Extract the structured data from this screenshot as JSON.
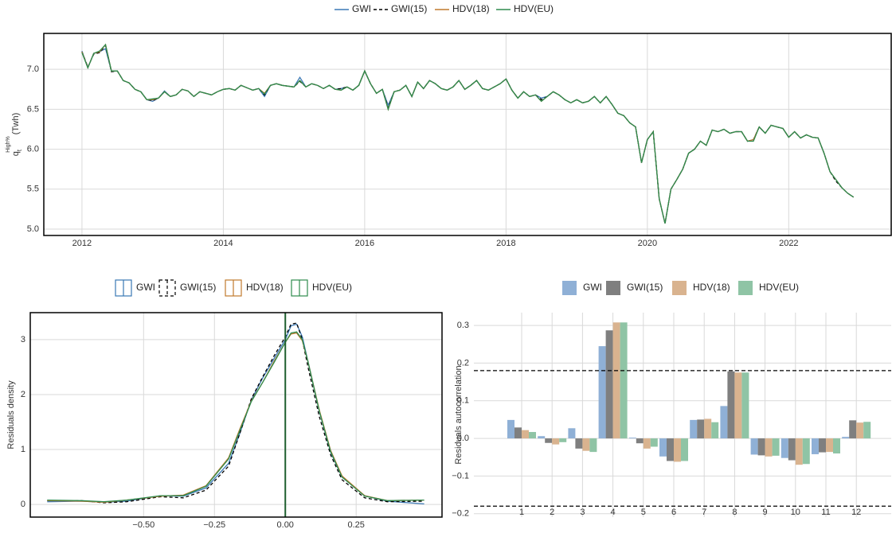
{
  "chart_data": [
    {
      "type": "line",
      "ylabel": "q",
      "ylabel_sub": "t",
      "ylabel_sup": "High%",
      "ylabel_unit": "(Twh)",
      "xlim": [
        2011.46,
        2023.45
      ],
      "xticks": [
        2012,
        2014,
        2016,
        2018,
        2020,
        2022
      ],
      "ylim": [
        4.92,
        7.45
      ],
      "yticks": [
        {
          "value": 5.0,
          "label": "5.0"
        },
        {
          "value": 5.5,
          "label": "5.5"
        },
        {
          "value": 6.0,
          "label": "6.0"
        },
        {
          "value": 6.5,
          "label": "6.5"
        },
        {
          "value": 7.0,
          "label": "7.0"
        }
      ],
      "grid": true,
      "legend": "top",
      "x": [
        2012,
        2012.083,
        2012.167,
        2012.25,
        2012.333,
        2012.417,
        2012.5,
        2012.583,
        2012.667,
        2012.75,
        2012.833,
        2012.917,
        2013,
        2013.083,
        2013.167,
        2013.25,
        2013.333,
        2013.417,
        2013.5,
        2013.583,
        2013.667,
        2013.75,
        2013.833,
        2013.917,
        2014,
        2014.083,
        2014.167,
        2014.25,
        2014.333,
        2014.417,
        2014.5,
        2014.583,
        2014.667,
        2014.75,
        2014.833,
        2014.917,
        2015,
        2015.083,
        2015.167,
        2015.25,
        2015.333,
        2015.417,
        2015.5,
        2015.583,
        2015.667,
        2015.75,
        2015.833,
        2015.917,
        2016,
        2016.083,
        2016.167,
        2016.25,
        2016.333,
        2016.417,
        2016.5,
        2016.583,
        2016.667,
        2016.75,
        2016.833,
        2016.917,
        2017,
        2017.083,
        2017.167,
        2017.25,
        2017.333,
        2017.417,
        2017.5,
        2017.583,
        2017.667,
        2017.75,
        2017.833,
        2017.917,
        2018,
        2018.083,
        2018.167,
        2018.25,
        2018.333,
        2018.417,
        2018.5,
        2018.583,
        2018.667,
        2018.75,
        2018.833,
        2018.917,
        2019,
        2019.083,
        2019.167,
        2019.25,
        2019.333,
        2019.417,
        2019.5,
        2019.583,
        2019.667,
        2019.75,
        2019.833,
        2019.917,
        2020,
        2020.083,
        2020.167,
        2020.25,
        2020.333,
        2020.417,
        2020.5,
        2020.583,
        2020.667,
        2020.75,
        2020.833,
        2020.917,
        2021,
        2021.083,
        2021.167,
        2021.25,
        2021.333,
        2021.417,
        2021.5,
        2021.583,
        2021.667,
        2021.75,
        2021.833,
        2021.917,
        2022,
        2022.083,
        2022.167,
        2022.25,
        2022.333,
        2022.417,
        2022.5,
        2022.583,
        2022.667,
        2022.75,
        2022.833,
        2022.917
      ],
      "series": [
        {
          "name": "GWI",
          "color": "#3a78b5",
          "dash": false,
          "values": [
            7.23,
            7.02,
            7.2,
            7.22,
            7.26,
            6.98,
            6.98,
            6.86,
            6.83,
            6.75,
            6.72,
            6.62,
            6.6,
            6.64,
            6.73,
            6.66,
            6.68,
            6.75,
            6.73,
            6.66,
            6.72,
            6.7,
            6.68,
            6.72,
            6.75,
            6.76,
            6.74,
            6.8,
            6.77,
            6.74,
            6.76,
            6.66,
            6.8,
            6.82,
            6.8,
            6.79,
            6.78,
            6.9,
            6.78,
            6.82,
            6.8,
            6.76,
            6.8,
            6.75,
            6.76,
            6.78,
            6.74,
            6.8,
            6.98,
            6.82,
            6.7,
            6.75,
            6.55,
            6.72,
            6.74,
            6.8,
            6.66,
            6.84,
            6.76,
            6.86,
            6.82,
            6.76,
            6.74,
            6.78,
            6.86,
            6.75,
            6.8,
            6.86,
            6.76,
            6.74,
            6.78,
            6.82,
            6.88,
            6.74,
            6.64,
            6.72,
            6.66,
            6.68,
            6.64,
            6.66,
            6.72,
            6.68,
            6.62,
            6.58,
            6.62,
            6.58,
            6.6,
            6.66,
            6.58,
            6.66,
            6.56,
            6.45,
            6.42,
            6.33,
            6.28,
            5.83,
            6.12,
            6.22,
            5.38,
            5.07,
            5.5,
            5.62,
            5.75,
            5.95,
            6,
            6.1,
            6.05,
            6.24,
            6.22,
            6.25,
            6.2,
            6.22,
            6.22,
            6.1,
            6.12,
            6.28,
            6.2,
            6.3,
            6.28,
            6.26,
            6.15,
            6.22,
            6.14,
            6.18,
            6.15,
            6.14,
            5.95,
            5.72,
            5.62,
            5.52,
            5.45,
            5.4
          ]
        },
        {
          "name": "GWI(15)",
          "color": "#000000",
          "dash": true,
          "values": [
            7.22,
            7.03,
            7.19,
            7.21,
            7.3,
            6.97,
            6.98,
            6.86,
            6.83,
            6.75,
            6.72,
            6.62,
            6.61,
            6.64,
            6.72,
            6.66,
            6.68,
            6.75,
            6.73,
            6.66,
            6.72,
            6.7,
            6.68,
            6.72,
            6.75,
            6.76,
            6.74,
            6.8,
            6.77,
            6.74,
            6.76,
            6.68,
            6.8,
            6.82,
            6.8,
            6.79,
            6.78,
            6.85,
            6.78,
            6.82,
            6.8,
            6.76,
            6.8,
            6.75,
            6.76,
            6.78,
            6.74,
            6.8,
            6.98,
            6.82,
            6.7,
            6.75,
            6.52,
            6.72,
            6.74,
            6.8,
            6.66,
            6.84,
            6.76,
            6.86,
            6.82,
            6.76,
            6.74,
            6.78,
            6.86,
            6.75,
            6.8,
            6.86,
            6.76,
            6.74,
            6.78,
            6.82,
            6.88,
            6.74,
            6.64,
            6.72,
            6.66,
            6.68,
            6.62,
            6.66,
            6.72,
            6.68,
            6.62,
            6.58,
            6.62,
            6.58,
            6.6,
            6.66,
            6.58,
            6.66,
            6.56,
            6.45,
            6.42,
            6.33,
            6.28,
            5.83,
            6.12,
            6.22,
            5.38,
            5.07,
            5.5,
            5.62,
            5.75,
            5.95,
            6,
            6.1,
            6.05,
            6.24,
            6.22,
            6.25,
            6.2,
            6.22,
            6.22,
            6.1,
            6.12,
            6.28,
            6.2,
            6.3,
            6.28,
            6.26,
            6.15,
            6.22,
            6.14,
            6.18,
            6.15,
            6.14,
            5.95,
            5.72,
            5.6,
            5.52,
            5.45,
            5.4
          ]
        },
        {
          "name": "HDV(18)",
          "color": "#c07a2d",
          "dash": false,
          "values": [
            7.22,
            7.02,
            7.2,
            7.22,
            7.31,
            6.98,
            6.98,
            6.86,
            6.83,
            6.75,
            6.72,
            6.62,
            6.62,
            6.64,
            6.72,
            6.66,
            6.68,
            6.75,
            6.73,
            6.66,
            6.72,
            6.7,
            6.68,
            6.72,
            6.75,
            6.76,
            6.74,
            6.8,
            6.77,
            6.74,
            6.76,
            6.7,
            6.8,
            6.82,
            6.8,
            6.79,
            6.78,
            6.86,
            6.78,
            6.82,
            6.8,
            6.76,
            6.8,
            6.75,
            6.74,
            6.78,
            6.74,
            6.8,
            6.98,
            6.82,
            6.7,
            6.75,
            6.5,
            6.72,
            6.74,
            6.8,
            6.66,
            6.84,
            6.76,
            6.86,
            6.82,
            6.76,
            6.74,
            6.78,
            6.86,
            6.75,
            6.8,
            6.86,
            6.76,
            6.74,
            6.78,
            6.82,
            6.88,
            6.74,
            6.64,
            6.72,
            6.66,
            6.68,
            6.6,
            6.66,
            6.72,
            6.68,
            6.62,
            6.58,
            6.62,
            6.58,
            6.6,
            6.66,
            6.58,
            6.66,
            6.56,
            6.45,
            6.42,
            6.33,
            6.28,
            5.83,
            6.12,
            6.22,
            5.38,
            5.07,
            5.5,
            5.62,
            5.75,
            5.95,
            6,
            6.1,
            6.05,
            6.24,
            6.22,
            6.25,
            6.2,
            6.22,
            6.22,
            6.1,
            6.12,
            6.28,
            6.2,
            6.3,
            6.28,
            6.26,
            6.15,
            6.22,
            6.14,
            6.18,
            6.15,
            6.14,
            5.95,
            5.72,
            5.62,
            5.52,
            5.45,
            5.4
          ]
        },
        {
          "name": "HDV(EU)",
          "color": "#2e8b4e",
          "dash": false,
          "values": [
            7.21,
            7.02,
            7.2,
            7.23,
            7.31,
            6.98,
            6.98,
            6.86,
            6.83,
            6.75,
            6.72,
            6.62,
            6.63,
            6.64,
            6.72,
            6.66,
            6.68,
            6.75,
            6.73,
            6.66,
            6.72,
            6.7,
            6.68,
            6.72,
            6.75,
            6.76,
            6.74,
            6.8,
            6.77,
            6.74,
            6.76,
            6.69,
            6.8,
            6.82,
            6.8,
            6.79,
            6.78,
            6.86,
            6.78,
            6.82,
            6.8,
            6.76,
            6.8,
            6.75,
            6.74,
            6.78,
            6.74,
            6.8,
            6.98,
            6.82,
            6.7,
            6.75,
            6.5,
            6.72,
            6.74,
            6.8,
            6.66,
            6.84,
            6.76,
            6.86,
            6.82,
            6.76,
            6.74,
            6.78,
            6.86,
            6.75,
            6.8,
            6.86,
            6.76,
            6.74,
            6.78,
            6.82,
            6.88,
            6.74,
            6.64,
            6.72,
            6.66,
            6.68,
            6.6,
            6.66,
            6.72,
            6.68,
            6.62,
            6.58,
            6.62,
            6.58,
            6.6,
            6.66,
            6.58,
            6.66,
            6.56,
            6.45,
            6.42,
            6.33,
            6.28,
            5.83,
            6.12,
            6.22,
            5.38,
            5.07,
            5.5,
            5.62,
            5.75,
            5.95,
            6,
            6.1,
            6.05,
            6.24,
            6.22,
            6.25,
            6.2,
            6.22,
            6.22,
            6.1,
            6.1,
            6.28,
            6.2,
            6.3,
            6.28,
            6.26,
            6.15,
            6.22,
            6.14,
            6.18,
            6.15,
            6.14,
            5.95,
            5.72,
            5.62,
            5.52,
            5.45,
            5.4
          ]
        }
      ]
    },
    {
      "type": "density",
      "ylabel": "Residuals density",
      "xlim": [
        -0.9,
        0.553
      ],
      "xticks": [
        {
          "value": -0.5,
          "label": "−0.50"
        },
        {
          "value": -0.25,
          "label": "−0.25"
        },
        {
          "value": 0,
          "label": "0.00"
        },
        {
          "value": 0.25,
          "label": "0.25"
        }
      ],
      "ylim": [
        -0.23,
        3.49
      ],
      "yticks": [
        0,
        1,
        2,
        3
      ],
      "grid": true,
      "legend": "top",
      "vline": 0,
      "x": [
        -0.84,
        -0.72,
        -0.64,
        -0.56,
        -0.44,
        -0.36,
        -0.28,
        -0.2,
        -0.16,
        -0.12,
        -0.08,
        -0.04,
        0,
        0.02,
        0.04,
        0.06,
        0.08,
        0.12,
        0.16,
        0.2,
        0.28,
        0.36,
        0.49
      ],
      "series": [
        {
          "name": "GWI",
          "color": "#3a78b5",
          "dash": false,
          "values": [
            0.05,
            0.06,
            0.04,
            0.06,
            0.16,
            0.15,
            0.3,
            0.75,
            1.3,
            1.9,
            2.3,
            2.65,
            3.0,
            3.25,
            3.28,
            3.05,
            2.6,
            1.7,
            0.95,
            0.5,
            0.16,
            0.06,
            0.01
          ]
        },
        {
          "name": "GWI(15)",
          "color": "#000000",
          "dash": true,
          "values": [
            0.07,
            0.07,
            0.03,
            0.05,
            0.14,
            0.12,
            0.26,
            0.7,
            1.3,
            1.92,
            2.32,
            2.7,
            3.05,
            3.28,
            3.3,
            3.0,
            2.5,
            1.6,
            0.9,
            0.45,
            0.12,
            0.05,
            0.06
          ]
        },
        {
          "name": "HDV(18)",
          "color": "#c07a2d",
          "dash": false,
          "values": [
            0.07,
            0.06,
            0.04,
            0.08,
            0.15,
            0.17,
            0.34,
            0.85,
            1.38,
            1.88,
            2.22,
            2.6,
            2.95,
            3.1,
            3.12,
            2.98,
            2.6,
            1.72,
            0.98,
            0.52,
            0.16,
            0.07,
            0.08
          ]
        },
        {
          "name": "HDV(EU)",
          "color": "#2e8b4e",
          "dash": false,
          "values": [
            0.08,
            0.07,
            0.05,
            0.08,
            0.16,
            0.16,
            0.33,
            0.83,
            1.35,
            1.87,
            2.22,
            2.58,
            2.95,
            3.12,
            3.14,
            3.0,
            2.6,
            1.7,
            0.96,
            0.5,
            0.15,
            0.07,
            0.08
          ]
        }
      ]
    },
    {
      "type": "bar",
      "ylabel": "Residuals autocorrelation",
      "categories": [
        "1",
        "2",
        "3",
        "4",
        "5",
        "6",
        "7",
        "8",
        "9",
        "10",
        "11",
        "12"
      ],
      "ylim": [
        -0.209,
        0.334
      ],
      "yticks": [
        {
          "value": -0.2,
          "label": "−0.2"
        },
        {
          "value": -0.1,
          "label": "−0.1"
        },
        {
          "value": 0.0,
          "label": "0.0"
        },
        {
          "value": 0.1,
          "label": "0.1"
        },
        {
          "value": 0.2,
          "label": "0.2"
        },
        {
          "value": 0.3,
          "label": "0.3"
        }
      ],
      "grid": true,
      "legend": "top",
      "hlines": [
        0.18,
        -0.18
      ],
      "series": [
        {
          "name": "GWI",
          "color": "#8fb0d6",
          "values": [
            0.049,
            0.006,
            0.027,
            0.245,
            0.002,
            -0.048,
            0.049,
            0.086,
            -0.043,
            -0.052,
            -0.042,
            0.004
          ]
        },
        {
          "name": "GWI(15)",
          "color": "#7f7f7f",
          "values": [
            0.029,
            -0.012,
            -0.027,
            0.287,
            -0.013,
            -0.06,
            0.05,
            0.178,
            -0.045,
            -0.058,
            -0.037,
            0.048
          ]
        },
        {
          "name": "HDV(18)",
          "color": "#d9b38f",
          "values": [
            0.022,
            -0.016,
            -0.033,
            0.308,
            -0.027,
            -0.062,
            0.052,
            0.175,
            -0.048,
            -0.07,
            -0.036,
            0.042
          ]
        },
        {
          "name": "HDV(EU)",
          "color": "#8fc4a5",
          "values": [
            0.017,
            -0.01,
            -0.036,
            0.308,
            -0.022,
            -0.06,
            0.043,
            0.175,
            -0.046,
            -0.068,
            -0.04,
            0.044
          ]
        }
      ]
    }
  ]
}
